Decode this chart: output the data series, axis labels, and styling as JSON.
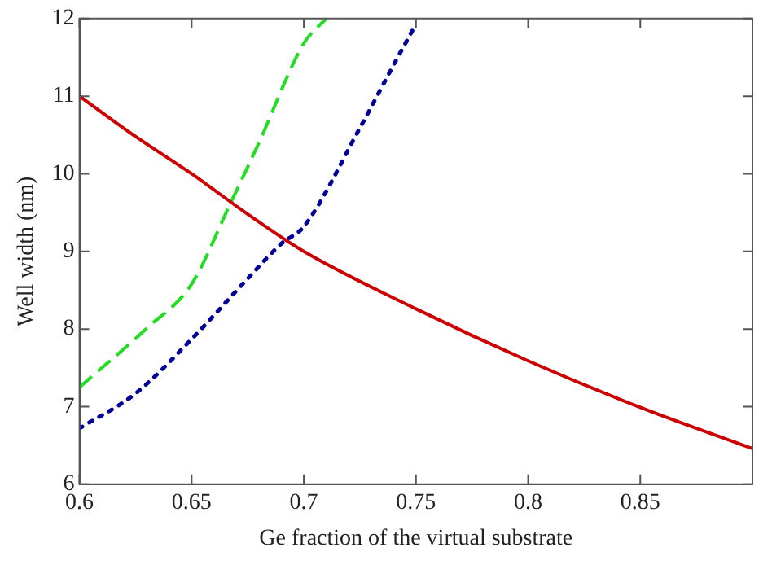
{
  "chart_data": {
    "type": "line",
    "xlabel": "Ge fraction of the virtual substrate",
    "ylabel": "Well width (nm)",
    "xlim": [
      0.6,
      0.9
    ],
    "xticks": [
      0.6,
      0.65,
      0.7,
      0.75,
      0.8,
      0.85
    ],
    "ylim": [
      6,
      12
    ],
    "yticks": [
      6,
      7,
      8,
      9,
      10,
      11,
      12
    ],
    "grid": false,
    "legend": false,
    "marker": "none",
    "series": [
      {
        "color": "#cc0000",
        "line_style": "solid",
        "x": [
          0.6,
          0.625,
          0.65,
          0.675,
          0.7,
          0.75,
          0.8,
          0.85,
          0.9
        ],
        "values": [
          11.0,
          10.48,
          10.0,
          9.48,
          9.0,
          8.26,
          7.59,
          6.99,
          6.46
        ]
      },
      {
        "color": "#22dd22",
        "line_style": "dashed",
        "x": [
          0.6,
          0.63,
          0.65,
          0.667,
          0.68,
          0.7,
          0.71
        ],
        "values": [
          7.25,
          8.01,
          8.58,
          9.6,
          10.4,
          11.68,
          12.0
        ]
      },
      {
        "color": "#000099",
        "line_style": "dotted",
        "x": [
          0.6,
          0.625,
          0.65,
          0.675,
          0.69,
          0.7,
          0.725,
          0.74,
          0.75
        ],
        "values": [
          6.72,
          7.17,
          7.87,
          8.65,
          9.1,
          9.32,
          10.59,
          11.4,
          11.93
        ]
      }
    ]
  }
}
